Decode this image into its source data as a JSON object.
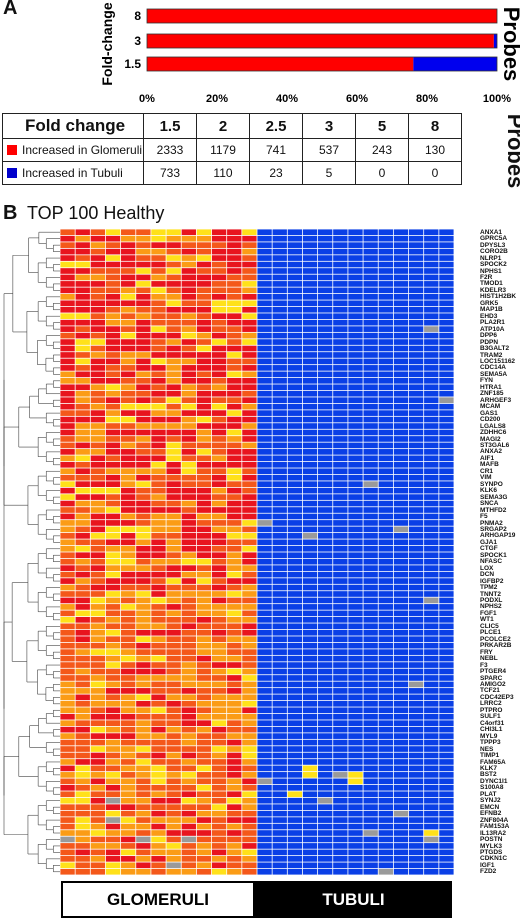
{
  "panel_a_label": "A",
  "panel_b_label": "B",
  "chart_data": [
    {
      "type": "bar",
      "orientation": "horizontal",
      "stacked_percent": true,
      "ylabel": "Fold-change",
      "side_label": "Probes",
      "categories": [
        "8",
        "3",
        "1.5"
      ],
      "series": [
        {
          "color": "#ff0000",
          "values": [
            100,
            99.1,
            76.1
          ]
        },
        {
          "color": "#0000ee",
          "values": [
            0,
            0.9,
            23.9
          ]
        }
      ],
      "xticks": [
        "0%",
        "20%",
        "40%",
        "60%",
        "80%",
        "100%"
      ],
      "xlim": [
        0,
        100
      ]
    },
    {
      "type": "table",
      "header_label": "Fold change",
      "side_label": "Probes",
      "columns": [
        "1.5",
        "2",
        "2.5",
        "3",
        "5",
        "8"
      ],
      "rows": [
        {
          "label": "Increased in Glomeruli",
          "color": "#ff0000",
          "values": [
            "2333",
            "1179",
            "741",
            "537",
            "243",
            "130"
          ]
        },
        {
          "label": "Increased in Tubuli",
          "color": "#0000cc",
          "values": [
            "733",
            "110",
            "23",
            "5",
            "0",
            "0"
          ]
        }
      ]
    },
    {
      "type": "heatmap",
      "title": "TOP 100 Healthy",
      "n_columns": 26,
      "group_labels": [
        "GLOMERULI",
        "TUBULI"
      ],
      "gene_labels": [
        "ANXA1",
        "GPRC5A",
        "DPYSL3",
        "CORO2B",
        "NLRP1",
        "SPOCK2",
        "NPHS1",
        "F2R",
        "TMOD1",
        "KDELR3",
        "HIST1H2BK",
        "GRK5",
        "MAP1B",
        "EHD3",
        "PLA2R1",
        "ATP10A",
        "DPP6",
        "PDPN",
        "B3GALT2",
        "TRAM2",
        "LOC151162",
        "CDC14A",
        "SEMA5A",
        "FYN",
        "HTRA1",
        "ZNF185",
        "ARHGEF3",
        "MCAM",
        "GAS1",
        "CD200",
        "LGALS8",
        "ZDHHC6",
        "MAGI2",
        "ST3GAL6",
        "ANXA2",
        "AIF1",
        "MAFB",
        "CR1",
        "VIM",
        "SYNPO",
        "KLK6",
        "SEMA3G",
        "SNCA",
        "MTHFD2",
        "F5",
        "PNMA2",
        "SRGAP2",
        "ARHGAP19",
        "GJA1",
        "CTGF",
        "SPOCK1",
        "NFASC",
        "LOX",
        "DCN",
        "IGFBP2",
        "TPM2",
        "TNNT2",
        "PODXL",
        "NPHS2",
        "FGF1",
        "WT1",
        "CLIC5",
        "PLCE1",
        "PCOLCE2",
        "PRKAR2B",
        "FRY",
        "NEBL",
        "F3",
        "PTGER4",
        "SPARC",
        "AMIGO2",
        "TCF21",
        "CDC42EP3",
        "LRRC2",
        "PTPRO",
        "SULF1",
        "C4orf31",
        "CHI3L1",
        "MYL9",
        "TPPP3",
        "NES",
        "TIMP1",
        "FAM65A",
        "KLK7",
        "BST2",
        "DYNC1I1",
        "S100A8",
        "PLAT",
        "SYNJ2",
        "EMCN",
        "EFNB2",
        "ZNF804A",
        "FAM153A",
        "IL13RA2",
        "POSTN",
        "MYLK3",
        "PTGDS",
        "CDKN1C",
        "IGF1",
        "FZD2"
      ],
      "colors": {
        "high": "#e8141e",
        "mid_high": "#f4581a",
        "mid": "#fb9c16",
        "low_warm": "#ffe11a",
        "cold": "#0a3fe6",
        "missing": "#9a9a9a"
      }
    }
  ]
}
